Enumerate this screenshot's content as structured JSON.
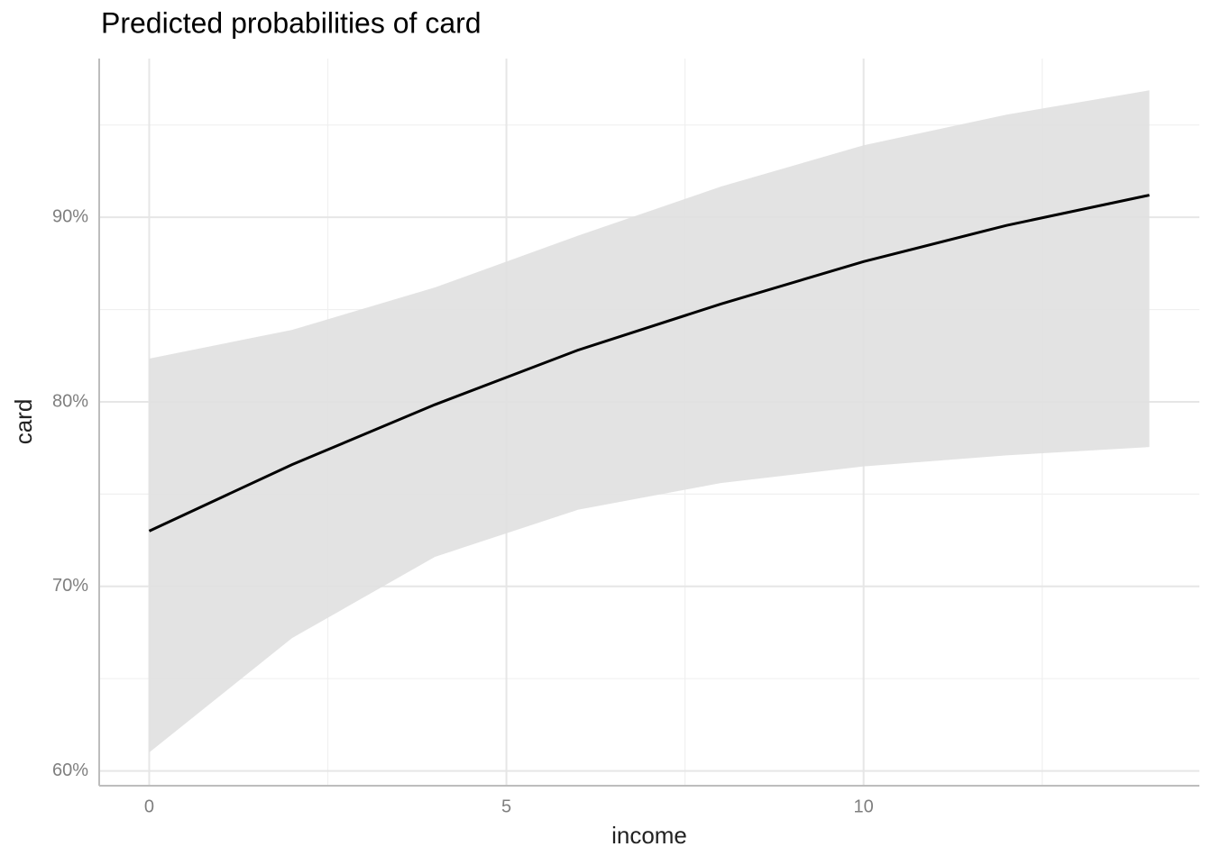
{
  "chart_data": {
    "type": "line",
    "title": "Predicted probabilities of card",
    "x_label": "income",
    "y_label": "card",
    "x": [
      0,
      2,
      4,
      6,
      8,
      10,
      12,
      14
    ],
    "values": [
      73.0,
      76.6,
      79.85,
      82.8,
      85.3,
      87.6,
      89.56,
      91.2
    ],
    "lower": [
      61.0,
      67.2,
      71.6,
      74.15,
      75.6,
      76.5,
      77.1,
      77.55
    ],
    "upper": [
      82.34,
      83.9,
      86.2,
      89.0,
      91.66,
      93.9,
      95.56,
      96.88
    ],
    "color": "#000000",
    "band_color": "#e0e0e0",
    "xlim": [
      -0.7,
      14.7
    ],
    "ylim": [
      59.2,
      98.6
    ],
    "xticks": [
      0,
      5,
      10
    ],
    "yticks": [
      {
        "value": 60,
        "label": "60%"
      },
      {
        "value": 70,
        "label": "70%"
      },
      {
        "value": 80,
        "label": "80%"
      },
      {
        "value": 90,
        "label": "90%"
      }
    ],
    "xminor": [
      2.5,
      7.5,
      12.5
    ],
    "yminor": [
      65,
      75,
      85,
      95
    ],
    "grid": true
  }
}
